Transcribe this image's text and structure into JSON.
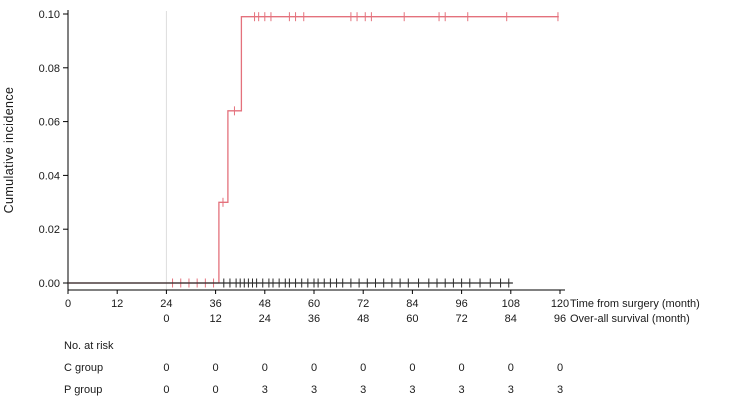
{
  "chart_data": {
    "type": "line",
    "subtype": "kaplan-meier-cumulative-incidence-step",
    "title": "",
    "ylabel": "Cumulative incidence",
    "ylim": [
      0,
      0.1
    ],
    "yticks": [
      0,
      0.02,
      0.04,
      0.06,
      0.08,
      0.1
    ],
    "xlim": [
      0,
      120
    ],
    "grid": false,
    "reference_line_month": 24,
    "axis1": {
      "label": "Time from surgery (month)",
      "tick_months": [
        0,
        12,
        24,
        36,
        48,
        60,
        72,
        84,
        96,
        108,
        120
      ]
    },
    "axis2": {
      "label": "Over-all survival (month)",
      "tick_months": [
        24,
        36,
        48,
        60,
        72,
        84,
        96,
        108,
        120
      ],
      "tick_labels": [
        "0",
        "12",
        "24",
        "36",
        "48",
        "60",
        "72",
        "84",
        "96"
      ]
    },
    "series": [
      {
        "id": "red-curve",
        "color": "#e4717c",
        "points": [
          [
            0,
            0
          ],
          [
            36.8,
            0
          ],
          [
            36.8,
            0.03
          ],
          [
            39,
            0.03
          ],
          [
            39,
            0.064
          ],
          [
            42.3,
            0.064
          ],
          [
            42.3,
            0.099
          ],
          [
            119.7,
            0.099
          ]
        ],
        "censors": [
          [
            25.5,
            0
          ],
          [
            27.5,
            0
          ],
          [
            29.5,
            0
          ],
          [
            31.5,
            0
          ],
          [
            33.5,
            0
          ],
          [
            35.5,
            0
          ],
          [
            37.8,
            0.03
          ],
          [
            40.6,
            0.064
          ],
          [
            45.5,
            0.099
          ],
          [
            46.5,
            0.099
          ],
          [
            48,
            0.099
          ],
          [
            49.5,
            0.099
          ],
          [
            54,
            0.099
          ],
          [
            55.5,
            0.099
          ],
          [
            57.5,
            0.099
          ],
          [
            69,
            0.099
          ],
          [
            70.5,
            0.099
          ],
          [
            72.5,
            0.099
          ],
          [
            74,
            0.099
          ],
          [
            82,
            0.099
          ],
          [
            90.5,
            0.099
          ],
          [
            92,
            0.099
          ],
          [
            97.5,
            0.099
          ],
          [
            107,
            0.099
          ],
          [
            119.5,
            0.099
          ]
        ]
      },
      {
        "id": "black-curve",
        "color": "#2a2a2a",
        "points": [
          [
            0,
            0
          ],
          [
            108.5,
            0
          ]
        ],
        "censors": [
          [
            38,
            0
          ],
          [
            39.5,
            0
          ],
          [
            41,
            0
          ],
          [
            42,
            0
          ],
          [
            43,
            0
          ],
          [
            44,
            0
          ],
          [
            45,
            0
          ],
          [
            46,
            0
          ],
          [
            47.5,
            0
          ],
          [
            49,
            0
          ],
          [
            50,
            0
          ],
          [
            51.5,
            0
          ],
          [
            53,
            0
          ],
          [
            54,
            0
          ],
          [
            55.5,
            0
          ],
          [
            57,
            0
          ],
          [
            58.5,
            0
          ],
          [
            60,
            0
          ],
          [
            61,
            0
          ],
          [
            62.5,
            0
          ],
          [
            64,
            0
          ],
          [
            65.5,
            0
          ],
          [
            67,
            0
          ],
          [
            69,
            0
          ],
          [
            71,
            0
          ],
          [
            73,
            0
          ],
          [
            75,
            0
          ],
          [
            77,
            0
          ],
          [
            79,
            0
          ],
          [
            81,
            0
          ],
          [
            83,
            0
          ],
          [
            85.5,
            0
          ],
          [
            88,
            0
          ],
          [
            90,
            0
          ],
          [
            92,
            0
          ],
          [
            94,
            0
          ],
          [
            96,
            0
          ],
          [
            98,
            0
          ],
          [
            100.5,
            0
          ],
          [
            103,
            0
          ],
          [
            105.5,
            0
          ],
          [
            107.5,
            0
          ]
        ]
      }
    ],
    "risk_table": {
      "title": "No. at risk",
      "months": [
        24,
        36,
        48,
        60,
        72,
        84,
        96,
        108,
        120
      ],
      "rows": [
        {
          "label": "C group",
          "values": [
            "0",
            "0",
            "0",
            "0",
            "0",
            "0",
            "0",
            "0",
            "0"
          ]
        },
        {
          "label": "P group",
          "values": [
            "0",
            "0",
            "3",
            "3",
            "3",
            "3",
            "3",
            "3",
            "3"
          ]
        }
      ]
    }
  }
}
